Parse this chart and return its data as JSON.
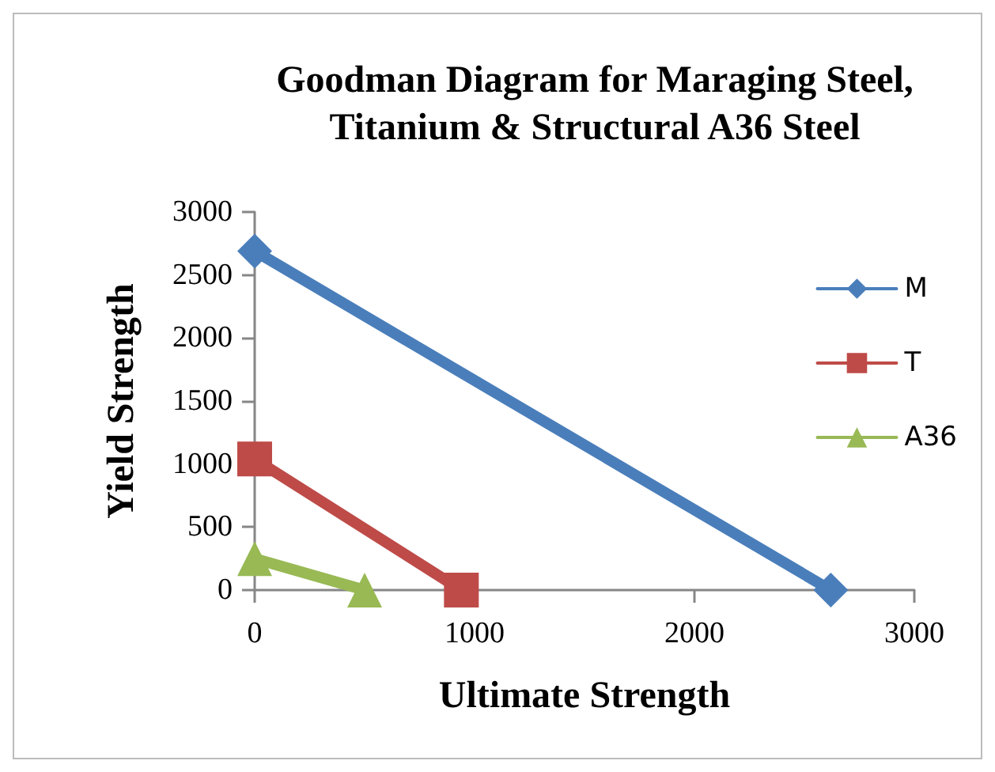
{
  "chart_data": {
    "type": "line",
    "title": "Goodman Diagram for Maraging Steel,Titanium & Structural A36 Steel",
    "xlabel": "Ultimate Strength",
    "ylabel": "Yield Strength",
    "series": [
      {
        "name": "M",
        "color": "#4a7ebb",
        "marker": "diamond",
        "x": [
          0,
          2620
        ],
        "values": [
          2690,
          0
        ]
      },
      {
        "name": "T",
        "color": "#be4b48",
        "marker": "square",
        "x": [
          0,
          940
        ],
        "values": [
          1040,
          0
        ]
      },
      {
        "name": "A36",
        "color": "#98b954",
        "marker": "triangle",
        "x": [
          0,
          500
        ],
        "values": [
          250,
          0
        ]
      }
    ],
    "xlim": [
      0,
      3000
    ],
    "xticks": [
      0,
      1000,
      2000,
      3000
    ],
    "ylim": [
      0,
      3000
    ],
    "yticks": [
      0,
      500,
      1000,
      1500,
      2000,
      2500,
      3000
    ],
    "grid": false,
    "legend": "right"
  }
}
